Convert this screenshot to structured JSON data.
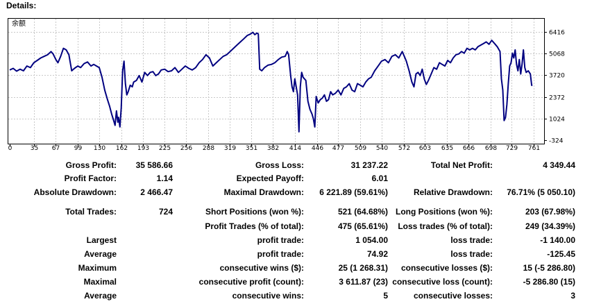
{
  "header": {
    "title": "Details:"
  },
  "chart_data": {
    "type": "line",
    "title": "余额",
    "series": [
      {
        "name": "余额",
        "color": "#000080"
      }
    ],
    "xlim": [
      0,
      776
    ],
    "ylim": [
      -324,
      7200
    ],
    "xticks": [
      0,
      35,
      67,
      99,
      130,
      162,
      193,
      225,
      256,
      288,
      319,
      351,
      382,
      414,
      446,
      477,
      509,
      540,
      572,
      603,
      635,
      666,
      698,
      729,
      761
    ],
    "yticks": [
      6416,
      5068,
      3720,
      2372,
      1024,
      -324
    ],
    "points": [
      [
        0,
        4050
      ],
      [
        5,
        4150
      ],
      [
        10,
        3980
      ],
      [
        15,
        4100
      ],
      [
        20,
        4000
      ],
      [
        25,
        4300
      ],
      [
        30,
        4200
      ],
      [
        35,
        4500
      ],
      [
        40,
        4650
      ],
      [
        45,
        4800
      ],
      [
        50,
        4900
      ],
      [
        55,
        5000
      ],
      [
        60,
        5200
      ],
      [
        63,
        5050
      ],
      [
        67,
        4700
      ],
      [
        70,
        4500
      ],
      [
        74,
        4900
      ],
      [
        78,
        5400
      ],
      [
        82,
        5300
      ],
      [
        86,
        5000
      ],
      [
        90,
        4000
      ],
      [
        94,
        4150
      ],
      [
        99,
        4300
      ],
      [
        103,
        4200
      ],
      [
        108,
        4450
      ],
      [
        113,
        4550
      ],
      [
        118,
        4300
      ],
      [
        122,
        4400
      ],
      [
        126,
        4300
      ],
      [
        130,
        4200
      ],
      [
        134,
        3600
      ],
      [
        138,
        2800
      ],
      [
        142,
        2200
      ],
      [
        145,
        1800
      ],
      [
        148,
        1300
      ],
      [
        151,
        900
      ],
      [
        153,
        600
      ],
      [
        155,
        1500
      ],
      [
        157,
        800
      ],
      [
        158,
        1100
      ],
      [
        160,
        500
      ],
      [
        162,
        1700
      ],
      [
        164,
        4000
      ],
      [
        166,
        4600
      ],
      [
        168,
        3200
      ],
      [
        170,
        2500
      ],
      [
        172,
        2700
      ],
      [
        175,
        3100
      ],
      [
        178,
        3000
      ],
      [
        180,
        3300
      ],
      [
        184,
        3400
      ],
      [
        188,
        3700
      ],
      [
        192,
        3300
      ],
      [
        196,
        3900
      ],
      [
        200,
        3700
      ],
      [
        204,
        3900
      ],
      [
        208,
        3950
      ],
      [
        212,
        3700
      ],
      [
        216,
        3800
      ],
      [
        220,
        4050
      ],
      [
        225,
        4100
      ],
      [
        230,
        3950
      ],
      [
        235,
        4000
      ],
      [
        240,
        4200
      ],
      [
        245,
        3900
      ],
      [
        250,
        4100
      ],
      [
        255,
        4300
      ],
      [
        260,
        4150
      ],
      [
        265,
        4050
      ],
      [
        270,
        4200
      ],
      [
        275,
        4500
      ],
      [
        280,
        4700
      ],
      [
        285,
        5000
      ],
      [
        290,
        4800
      ],
      [
        295,
        4300
      ],
      [
        300,
        4500
      ],
      [
        305,
        4700
      ],
      [
        310,
        4900
      ],
      [
        315,
        5000
      ],
      [
        320,
        5200
      ],
      [
        325,
        5400
      ],
      [
        330,
        5600
      ],
      [
        335,
        5800
      ],
      [
        340,
        6000
      ],
      [
        345,
        6200
      ],
      [
        350,
        6300
      ],
      [
        353,
        6400
      ],
      [
        356,
        6250
      ],
      [
        359,
        6350
      ],
      [
        361,
        6300
      ],
      [
        363,
        4100
      ],
      [
        366,
        4000
      ],
      [
        370,
        4200
      ],
      [
        375,
        4350
      ],
      [
        380,
        4400
      ],
      [
        385,
        4500
      ],
      [
        390,
        4700
      ],
      [
        395,
        4850
      ],
      [
        400,
        4900
      ],
      [
        403,
        5200
      ],
      [
        405,
        5000
      ],
      [
        408,
        3700
      ],
      [
        410,
        3000
      ],
      [
        412,
        2700
      ],
      [
        414,
        3500
      ],
      [
        416,
        3000
      ],
      [
        418,
        2500
      ],
      [
        420,
        200
      ],
      [
        422,
        3000
      ],
      [
        424,
        3900
      ],
      [
        426,
        3600
      ],
      [
        430,
        3400
      ],
      [
        433,
        2100
      ],
      [
        436,
        1600
      ],
      [
        439,
        1300
      ],
      [
        441,
        1000
      ],
      [
        443,
        500
      ],
      [
        445,
        2400
      ],
      [
        448,
        2000
      ],
      [
        451,
        2200
      ],
      [
        454,
        2300
      ],
      [
        457,
        2500
      ],
      [
        460,
        2100
      ],
      [
        463,
        2200
      ],
      [
        466,
        2700
      ],
      [
        469,
        2500
      ],
      [
        473,
        2600
      ],
      [
        477,
        2800
      ],
      [
        481,
        2500
      ],
      [
        485,
        2900
      ],
      [
        489,
        3000
      ],
      [
        493,
        3200
      ],
      [
        497,
        2800
      ],
      [
        501,
        2700
      ],
      [
        505,
        3200
      ],
      [
        509,
        3100
      ],
      [
        513,
        3000
      ],
      [
        517,
        3300
      ],
      [
        521,
        3500
      ],
      [
        525,
        3600
      ],
      [
        530,
        4000
      ],
      [
        535,
        4300
      ],
      [
        540,
        4600
      ],
      [
        545,
        4700
      ],
      [
        550,
        4500
      ],
      [
        555,
        4900
      ],
      [
        560,
        5000
      ],
      [
        565,
        4800
      ],
      [
        570,
        5200
      ],
      [
        573,
        4900
      ],
      [
        576,
        4600
      ],
      [
        580,
        4000
      ],
      [
        584,
        3300
      ],
      [
        587,
        3000
      ],
      [
        590,
        3800
      ],
      [
        593,
        3900
      ],
      [
        596,
        3700
      ],
      [
        599,
        4100
      ],
      [
        602,
        3500
      ],
      [
        605,
        3150
      ],
      [
        608,
        3400
      ],
      [
        612,
        3800
      ],
      [
        616,
        4200
      ],
      [
        620,
        4100
      ],
      [
        624,
        4500
      ],
      [
        628,
        4400
      ],
      [
        632,
        4300
      ],
      [
        636,
        4650
      ],
      [
        640,
        4500
      ],
      [
        644,
        4800
      ],
      [
        648,
        5000
      ],
      [
        652,
        5050
      ],
      [
        656,
        5200
      ],
      [
        660,
        5100
      ],
      [
        664,
        5400
      ],
      [
        668,
        5300
      ],
      [
        672,
        5400
      ],
      [
        676,
        5300
      ],
      [
        680,
        5500
      ],
      [
        684,
        5600
      ],
      [
        688,
        5700
      ],
      [
        692,
        5800
      ],
      [
        696,
        5650
      ],
      [
        700,
        5900
      ],
      [
        704,
        5700
      ],
      [
        708,
        5500
      ],
      [
        712,
        5200
      ],
      [
        714,
        3500
      ],
      [
        716,
        2800
      ],
      [
        718,
        900
      ],
      [
        720,
        1100
      ],
      [
        722,
        1900
      ],
      [
        724,
        3200
      ],
      [
        726,
        4300
      ],
      [
        728,
        4500
      ],
      [
        730,
        5100
      ],
      [
        732,
        4800
      ],
      [
        734,
        5300
      ],
      [
        736,
        4400
      ],
      [
        738,
        4000
      ],
      [
        740,
        4700
      ],
      [
        742,
        3800
      ],
      [
        744,
        4400
      ],
      [
        746,
        5300
      ],
      [
        748,
        4200
      ],
      [
        750,
        3900
      ],
      [
        753,
        4000
      ],
      [
        756,
        3800
      ],
      [
        758,
        3100
      ],
      [
        759,
        3080
      ]
    ]
  },
  "stats": {
    "row1": {
      "l1": "Gross Profit:",
      "v1": "35 586.66",
      "l2": "Gross Loss:",
      "v2": "31 237.22",
      "l3": "Total Net Profit:",
      "v3": "4 349.44"
    },
    "row2": {
      "l1": "Profit Factor:",
      "v1": "1.14",
      "l2": "Expected Payoff:",
      "v2": "6.01"
    },
    "row3": {
      "l1": "Absolute Drawdown:",
      "v1": "2 466.47",
      "l2": "Maximal Drawdown:",
      "v2": "6 221.89 (59.61%)",
      "l3": "Relative Drawdown:",
      "v3": "76.71% (5 050.10)"
    },
    "row4": {
      "l1": "Total Trades:",
      "v1": "724",
      "l2": "Short Positions (won %):",
      "v2": "521 (64.68%)",
      "l3": "Long Positions (won %):",
      "v3": "203 (67.98%)"
    },
    "row5": {
      "l2": "Profit Trades (% of total):",
      "v2": "475 (65.61%)",
      "l3": "Loss trades (% of total):",
      "v3": "249 (34.39%)"
    },
    "row6": {
      "l1": "Largest",
      "l2": "profit trade:",
      "v2": "1 054.00",
      "l3": "loss trade:",
      "v3": "-1 140.00"
    },
    "row7": {
      "l1": "Average",
      "l2": "profit trade:",
      "v2": "74.92",
      "l3": "loss trade:",
      "v3": "-125.45"
    },
    "row8": {
      "l1": "Maximum",
      "l2": "consecutive wins ($):",
      "v2": "25 (1 268.31)",
      "l3": "consecutive losses ($):",
      "v3": "15 (-5 286.80)"
    },
    "row9": {
      "l1": "Maximal",
      "l2": "consecutive profit (count):",
      "v2": "3 611.87 (23)",
      "l3": "consecutive loss (count):",
      "v3": "-5 286.80 (15)"
    },
    "row10": {
      "l1": "Average",
      "l2": "consecutive wins:",
      "v2": "5",
      "l3": "consecutive losses:",
      "v3": "3"
    }
  }
}
